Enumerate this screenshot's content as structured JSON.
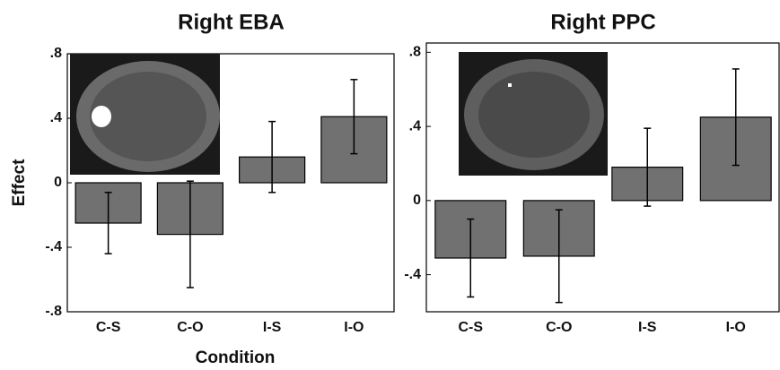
{
  "chart_data": [
    {
      "type": "bar",
      "title": "Right EBA",
      "x_label": "Condition",
      "y_label": "Effect",
      "categories": [
        "C-S",
        "C-O",
        "I-S",
        "I-O"
      ],
      "values": [
        -0.25,
        -0.32,
        0.16,
        0.41
      ],
      "errors": [
        0.19,
        0.33,
        0.22,
        0.23
      ],
      "color": "#717171",
      "ylim": [
        -0.8,
        0.8
      ],
      "yticks": [
        {
          "value": -0.8,
          "label": "-.8"
        },
        {
          "value": -0.4,
          "label": "-.4"
        },
        0,
        {
          "value": 0.4,
          "label": ".4"
        },
        {
          "value": 0.8,
          "label": ".8"
        }
      ]
    },
    {
      "type": "bar",
      "title": "Right PPC",
      "categories": [
        "C-S",
        "C-O",
        "I-S",
        "I-O"
      ],
      "values": [
        -0.31,
        -0.3,
        0.18,
        0.45
      ],
      "errors": [
        0.21,
        0.25,
        0.21,
        0.26
      ],
      "color": "#717171",
      "ylim": [
        -0.6,
        0.85
      ],
      "yticks": [
        {
          "value": -0.4,
          "label": "-.4"
        },
        0,
        {
          "value": 0.4,
          "label": ".4"
        },
        {
          "value": 0.8,
          "label": ".8"
        }
      ]
    }
  ]
}
